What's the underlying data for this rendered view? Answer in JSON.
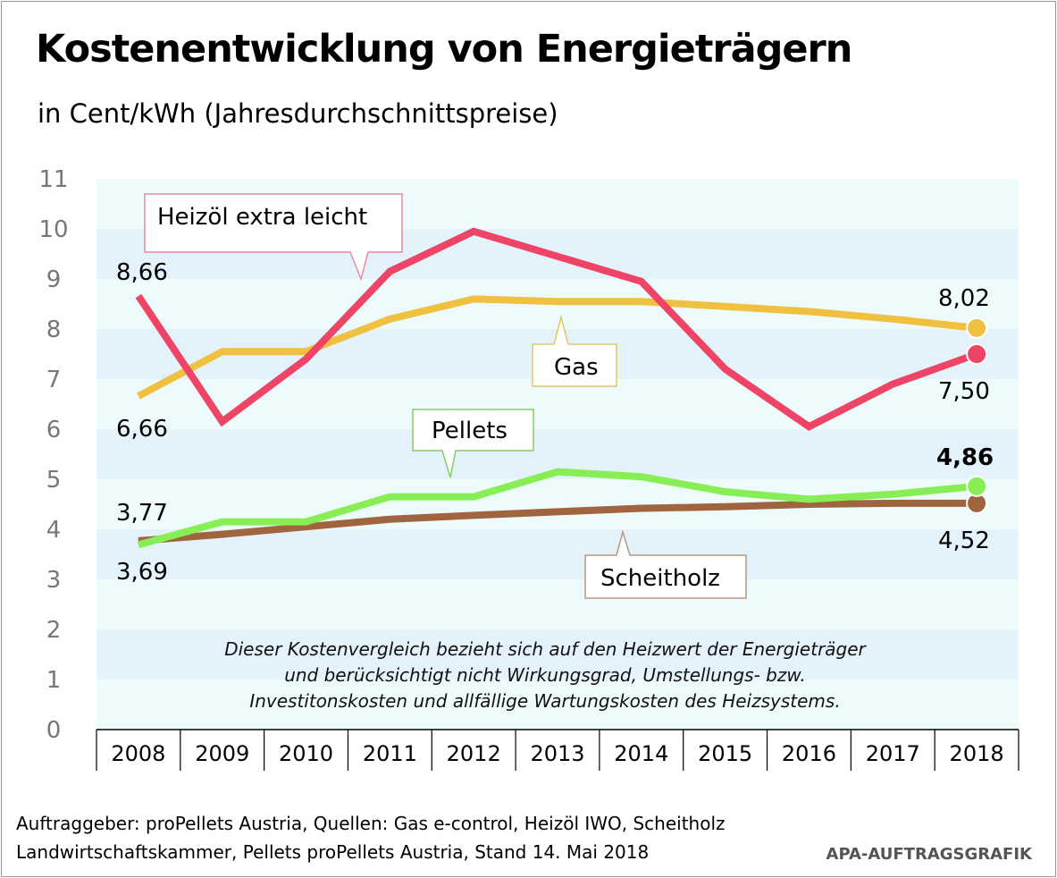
{
  "title": "Kostenentwicklung von Energieträgern",
  "subtitle": "in Cent/kWh (Jahresdurchschnittspreise)",
  "note_lines": [
    "Dieser Kostenvergleich bezieht sich auf den Heizwert der Energieträger",
    "und berücksichtigt nicht Wirkungsgrad, Umstellungs- bzw.",
    "Investitonskosten und allfällige Wartungskosten des Heizsystems."
  ],
  "source_lines": [
    "Auftraggeber: proPellets Austria, Quellen: Gas e-control, Heizöl IWO, Scheitholz",
    "Landwirtschaftskammer, Pellets proPellets Austria, Stand 14. Mai 2018"
  ],
  "credit": "APA-AUFTRAGSGRAFIK",
  "chart_data": {
    "type": "line",
    "title": "Kostenentwicklung von Energieträgern",
    "ylabel": "Cent/kWh",
    "ylim": [
      0,
      11
    ],
    "yticks": [
      "0",
      "1",
      "2",
      "3",
      "4",
      "5",
      "6",
      "7",
      "8",
      "9",
      "10",
      "11"
    ],
    "x": [
      "2008",
      "2009",
      "2010",
      "2011",
      "2012",
      "2013",
      "2014",
      "2015",
      "2016",
      "2017",
      "2018"
    ],
    "grid": "horizontal bands",
    "series": [
      {
        "name": "Heizöl extra leicht",
        "color": "#ee4466",
        "values": [
          8.66,
          6.15,
          7.4,
          9.15,
          9.95,
          9.45,
          8.95,
          7.2,
          6.05,
          6.9,
          7.5
        ],
        "start_label": "8,66",
        "end_label": "7,50"
      },
      {
        "name": "Gas",
        "color": "#f0c040",
        "values": [
          6.66,
          7.55,
          7.55,
          8.2,
          8.6,
          8.55,
          8.55,
          8.45,
          8.35,
          8.2,
          8.02
        ],
        "start_label": "6,66",
        "end_label": "8,02"
      },
      {
        "name": "Pellets",
        "color": "#88ee55",
        "values": [
          3.69,
          4.15,
          4.15,
          4.65,
          4.65,
          5.15,
          5.05,
          4.75,
          4.6,
          4.7,
          4.86
        ],
        "start_label": "3,69",
        "end_label": "4,86"
      },
      {
        "name": "Scheitholz",
        "color": "#a0653f",
        "values": [
          3.77,
          3.9,
          4.05,
          4.2,
          4.28,
          4.35,
          4.42,
          4.45,
          4.5,
          4.52,
          4.52
        ],
        "start_label": "3,77",
        "end_label": "4,52"
      }
    ]
  }
}
